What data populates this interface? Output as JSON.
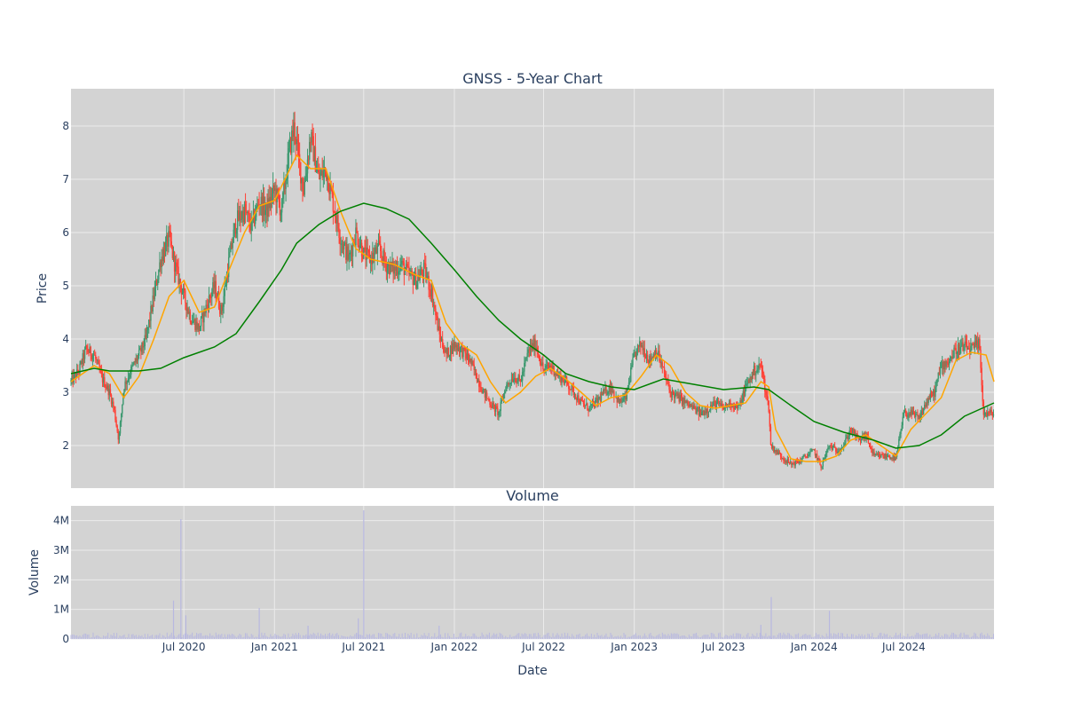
{
  "chart_data": [
    {
      "type": "candlestick",
      "title": "GNSS - 5-Year Chart",
      "ylabel": "Price",
      "ylim": [
        1.2,
        8.7
      ],
      "x_range": [
        "2019-11-15",
        "2024-12-31"
      ],
      "y_ticks": [
        2,
        3,
        4,
        5,
        6,
        7,
        8
      ],
      "grid": true,
      "legend": "none",
      "up_color": "#3d9970",
      "down_color": "#ff4136",
      "price_points": [
        [
          "2019-11-15",
          3.2
        ],
        [
          "2019-12-01",
          3.4
        ],
        [
          "2019-12-15",
          3.8
        ],
        [
          "2020-01-01",
          3.7
        ],
        [
          "2020-01-15",
          3.3
        ],
        [
          "2020-02-01",
          3.0
        ],
        [
          "2020-02-10",
          2.7
        ],
        [
          "2020-02-20",
          2.1
        ],
        [
          "2020-03-01",
          3.1
        ],
        [
          "2020-03-15",
          3.4
        ],
        [
          "2020-04-01",
          3.7
        ],
        [
          "2020-04-15",
          4.0
        ],
        [
          "2020-05-01",
          4.8
        ],
        [
          "2020-05-15",
          5.5
        ],
        [
          "2020-06-01",
          5.9
        ],
        [
          "2020-06-15",
          5.3
        ],
        [
          "2020-07-01",
          4.8
        ],
        [
          "2020-07-15",
          4.4
        ],
        [
          "2020-08-01",
          4.2
        ],
        [
          "2020-08-15",
          4.6
        ],
        [
          "2020-09-01",
          5.0
        ],
        [
          "2020-09-15",
          4.5
        ],
        [
          "2020-10-01",
          5.5
        ],
        [
          "2020-10-15",
          6.2
        ],
        [
          "2020-11-01",
          6.4
        ],
        [
          "2020-11-15",
          6.1
        ],
        [
          "2020-12-01",
          6.6
        ],
        [
          "2020-12-15",
          6.4
        ],
        [
          "2021-01-01",
          6.8
        ],
        [
          "2021-01-15",
          6.4
        ],
        [
          "2021-02-01",
          7.6
        ],
        [
          "2021-02-10",
          8.0
        ],
        [
          "2021-02-20",
          7.3
        ],
        [
          "2021-03-01",
          6.8
        ],
        [
          "2021-03-15",
          7.8
        ],
        [
          "2021-04-01",
          7.0
        ],
        [
          "2021-04-15",
          7.2
        ],
        [
          "2021-05-01",
          6.5
        ],
        [
          "2021-05-15",
          5.9
        ],
        [
          "2021-06-01",
          5.5
        ],
        [
          "2021-06-15",
          6.0
        ],
        [
          "2021-07-01",
          5.6
        ],
        [
          "2021-07-15",
          5.5
        ],
        [
          "2021-08-01",
          5.7
        ],
        [
          "2021-08-15",
          5.4
        ],
        [
          "2021-09-01",
          5.3
        ],
        [
          "2021-09-15",
          5.4
        ],
        [
          "2021-10-01",
          5.2
        ],
        [
          "2021-10-15",
          5.1
        ],
        [
          "2021-11-01",
          5.3
        ],
        [
          "2021-11-15",
          4.9
        ],
        [
          "2021-12-01",
          4.1
        ],
        [
          "2021-12-15",
          3.7
        ],
        [
          "2022-01-01",
          3.9
        ],
        [
          "2022-01-15",
          3.8
        ],
        [
          "2022-02-01",
          3.6
        ],
        [
          "2022-02-15",
          3.3
        ],
        [
          "2022-03-01",
          3.0
        ],
        [
          "2022-03-15",
          2.8
        ],
        [
          "2022-04-01",
          2.6
        ],
        [
          "2022-04-15",
          3.1
        ],
        [
          "2022-05-01",
          3.3
        ],
        [
          "2022-05-15",
          3.2
        ],
        [
          "2022-06-01",
          3.8
        ],
        [
          "2022-06-15",
          3.9
        ],
        [
          "2022-07-01",
          3.4
        ],
        [
          "2022-07-15",
          3.5
        ],
        [
          "2022-08-01",
          3.3
        ],
        [
          "2022-08-15",
          3.2
        ],
        [
          "2022-09-01",
          3.0
        ],
        [
          "2022-09-15",
          2.8
        ],
        [
          "2022-10-01",
          2.7
        ],
        [
          "2022-10-15",
          2.8
        ],
        [
          "2022-11-01",
          3.0
        ],
        [
          "2022-11-15",
          3.1
        ],
        [
          "2022-12-01",
          2.8
        ],
        [
          "2022-12-15",
          2.9
        ],
        [
          "2023-01-01",
          3.7
        ],
        [
          "2023-01-15",
          3.9
        ],
        [
          "2023-02-01",
          3.6
        ],
        [
          "2023-02-15",
          3.8
        ],
        [
          "2023-03-01",
          3.4
        ],
        [
          "2023-03-15",
          3.0
        ],
        [
          "2023-04-01",
          2.9
        ],
        [
          "2023-04-15",
          2.8
        ],
        [
          "2023-05-01",
          2.7
        ],
        [
          "2023-05-15",
          2.6
        ],
        [
          "2023-06-01",
          2.7
        ],
        [
          "2023-06-15",
          2.8
        ],
        [
          "2023-07-01",
          2.7
        ],
        [
          "2023-07-15",
          2.8
        ],
        [
          "2023-08-01",
          2.7
        ],
        [
          "2023-08-15",
          3.1
        ],
        [
          "2023-09-01",
          3.4
        ],
        [
          "2023-09-15",
          3.5
        ],
        [
          "2023-10-01",
          2.7
        ],
        [
          "2023-10-05",
          2.0
        ],
        [
          "2023-10-15",
          1.9
        ],
        [
          "2023-11-01",
          1.75
        ],
        [
          "2023-11-15",
          1.65
        ],
        [
          "2023-12-01",
          1.7
        ],
        [
          "2023-12-15",
          1.8
        ],
        [
          "2024-01-01",
          1.9
        ],
        [
          "2024-01-15",
          1.6
        ],
        [
          "2024-02-01",
          2.0
        ],
        [
          "2024-02-15",
          1.9
        ],
        [
          "2024-03-01",
          2.0
        ],
        [
          "2024-03-15",
          2.3
        ],
        [
          "2024-04-01",
          2.1
        ],
        [
          "2024-04-15",
          2.2
        ],
        [
          "2024-05-01",
          1.8
        ],
        [
          "2024-05-15",
          1.8
        ],
        [
          "2024-06-01",
          1.8
        ],
        [
          "2024-06-15",
          1.75
        ],
        [
          "2024-07-01",
          2.6
        ],
        [
          "2024-07-15",
          2.6
        ],
        [
          "2024-08-01",
          2.5
        ],
        [
          "2024-08-15",
          2.8
        ],
        [
          "2024-09-01",
          3.0
        ],
        [
          "2024-09-15",
          3.5
        ],
        [
          "2024-10-01",
          3.6
        ],
        [
          "2024-10-15",
          3.8
        ],
        [
          "2024-11-01",
          3.85
        ],
        [
          "2024-11-15",
          3.8
        ],
        [
          "2024-12-01",
          3.9
        ],
        [
          "2024-12-10",
          2.6
        ],
        [
          "2024-12-31",
          2.6
        ]
      ],
      "series": [
        {
          "color": "#ffa500",
          "points": [
            [
              "2019-11-15",
              3.2
            ],
            [
              "2020-01-01",
              3.5
            ],
            [
              "2020-02-01",
              3.35
            ],
            [
              "2020-03-01",
              2.9
            ],
            [
              "2020-04-01",
              3.3
            ],
            [
              "2020-05-01",
              4.0
            ],
            [
              "2020-06-01",
              4.8
            ],
            [
              "2020-07-01",
              5.1
            ],
            [
              "2020-08-01",
              4.5
            ],
            [
              "2020-09-01",
              4.6
            ],
            [
              "2020-10-01",
              5.3
            ],
            [
              "2020-11-01",
              6.0
            ],
            [
              "2020-12-01",
              6.5
            ],
            [
              "2021-01-01",
              6.6
            ],
            [
              "2021-02-15",
              7.45
            ],
            [
              "2021-03-15",
              7.2
            ],
            [
              "2021-04-15",
              7.2
            ],
            [
              "2021-05-15",
              6.4
            ],
            [
              "2021-06-15",
              5.7
            ],
            [
              "2021-07-15",
              5.5
            ],
            [
              "2021-09-01",
              5.4
            ],
            [
              "2021-10-15",
              5.2
            ],
            [
              "2021-11-15",
              5.1
            ],
            [
              "2021-12-15",
              4.3
            ],
            [
              "2022-01-15",
              3.9
            ],
            [
              "2022-02-15",
              3.7
            ],
            [
              "2022-03-15",
              3.2
            ],
            [
              "2022-04-15",
              2.8
            ],
            [
              "2022-05-15",
              3.0
            ],
            [
              "2022-06-15",
              3.3
            ],
            [
              "2022-07-15",
              3.45
            ],
            [
              "2022-08-15",
              3.25
            ],
            [
              "2022-09-15",
              3.0
            ],
            [
              "2022-10-15",
              2.75
            ],
            [
              "2022-11-15",
              2.9
            ],
            [
              "2022-12-15",
              2.95
            ],
            [
              "2023-01-15",
              3.3
            ],
            [
              "2023-02-15",
              3.7
            ],
            [
              "2023-03-15",
              3.5
            ],
            [
              "2023-04-15",
              3.0
            ],
            [
              "2023-05-15",
              2.75
            ],
            [
              "2023-06-15",
              2.7
            ],
            [
              "2023-07-15",
              2.75
            ],
            [
              "2023-08-15",
              2.8
            ],
            [
              "2023-09-15",
              3.2
            ],
            [
              "2023-10-01",
              3.1
            ],
            [
              "2023-10-15",
              2.3
            ],
            [
              "2023-11-15",
              1.75
            ],
            [
              "2023-12-15",
              1.7
            ],
            [
              "2024-01-15",
              1.7
            ],
            [
              "2024-02-15",
              1.8
            ],
            [
              "2024-03-15",
              2.1
            ],
            [
              "2024-04-15",
              2.2
            ],
            [
              "2024-05-15",
              2.0
            ],
            [
              "2024-06-15",
              1.8
            ],
            [
              "2024-07-15",
              2.3
            ],
            [
              "2024-08-15",
              2.6
            ],
            [
              "2024-09-15",
              2.9
            ],
            [
              "2024-10-15",
              3.6
            ],
            [
              "2024-11-15",
              3.75
            ],
            [
              "2024-12-15",
              3.7
            ],
            [
              "2024-12-31",
              3.2
            ]
          ]
        },
        {
          "color": "#008000",
          "points": [
            [
              "2019-11-15",
              3.35
            ],
            [
              "2020-01-01",
              3.45
            ],
            [
              "2020-02-01",
              3.4
            ],
            [
              "2020-04-01",
              3.4
            ],
            [
              "2020-05-15",
              3.45
            ],
            [
              "2020-07-01",
              3.65
            ],
            [
              "2020-09-01",
              3.85
            ],
            [
              "2020-10-15",
              4.1
            ],
            [
              "2020-12-01",
              4.7
            ],
            [
              "2021-01-15",
              5.3
            ],
            [
              "2021-02-15",
              5.8
            ],
            [
              "2021-04-01",
              6.15
            ],
            [
              "2021-05-15",
              6.4
            ],
            [
              "2021-07-01",
              6.55
            ],
            [
              "2021-08-15",
              6.45
            ],
            [
              "2021-10-01",
              6.25
            ],
            [
              "2021-11-15",
              5.8
            ],
            [
              "2022-01-01",
              5.3
            ],
            [
              "2022-02-15",
              4.8
            ],
            [
              "2022-04-01",
              4.35
            ],
            [
              "2022-05-15",
              4.0
            ],
            [
              "2022-07-01",
              3.7
            ],
            [
              "2022-08-15",
              3.35
            ],
            [
              "2022-10-01",
              3.2
            ],
            [
              "2022-11-15",
              3.1
            ],
            [
              "2023-01-01",
              3.05
            ],
            [
              "2023-03-01",
              3.25
            ],
            [
              "2023-05-01",
              3.15
            ],
            [
              "2023-07-01",
              3.05
            ],
            [
              "2023-09-01",
              3.1
            ],
            [
              "2023-10-01",
              3.05
            ],
            [
              "2023-11-15",
              2.75
            ],
            [
              "2024-01-01",
              2.45
            ],
            [
              "2024-03-01",
              2.25
            ],
            [
              "2024-05-01",
              2.1
            ],
            [
              "2024-06-15",
              1.95
            ],
            [
              "2024-08-01",
              2.0
            ],
            [
              "2024-09-15",
              2.2
            ],
            [
              "2024-11-01",
              2.55
            ],
            [
              "2024-12-31",
              2.8
            ]
          ]
        }
      ]
    },
    {
      "type": "bar",
      "title": "Volume",
      "xlabel": "Date",
      "ylabel": "Volume",
      "ylim": [
        0,
        4500000
      ],
      "y_ticks": [
        {
          "value": 0,
          "label": "0"
        },
        {
          "value": 1000000,
          "label": "1M"
        },
        {
          "value": 2000000,
          "label": "2M"
        },
        {
          "value": 3000000,
          "label": "3M"
        },
        {
          "value": 4000000,
          "label": "4M"
        }
      ],
      "x_ticks": [
        {
          "date": "2020-07-01",
          "label": "Jul 2020"
        },
        {
          "date": "2021-01-01",
          "label": "Jan 2021"
        },
        {
          "date": "2021-07-01",
          "label": "Jul 2021"
        },
        {
          "date": "2022-01-01",
          "label": "Jan 2022"
        },
        {
          "date": "2022-07-01",
          "label": "Jul 2022"
        },
        {
          "date": "2023-01-01",
          "label": "Jan 2023"
        },
        {
          "date": "2023-07-01",
          "label": "Jul 2023"
        },
        {
          "date": "2024-01-01",
          "label": "Jan 2024"
        },
        {
          "date": "2024-07-01",
          "label": "Jul 2024"
        }
      ],
      "grid": true,
      "bar_color": "#b8b8e0",
      "spikes": [
        [
          "2020-06-10",
          1300000
        ],
        [
          "2020-06-25",
          4050000
        ],
        [
          "2020-07-05",
          800000
        ],
        [
          "2020-12-01",
          1050000
        ],
        [
          "2021-03-10",
          450000
        ],
        [
          "2021-06-20",
          700000
        ],
        [
          "2021-07-01",
          4350000
        ],
        [
          "2021-12-01",
          450000
        ],
        [
          "2023-09-15",
          480000
        ],
        [
          "2023-10-06",
          1420000
        ],
        [
          "2024-02-01",
          950000
        ]
      ]
    }
  ]
}
